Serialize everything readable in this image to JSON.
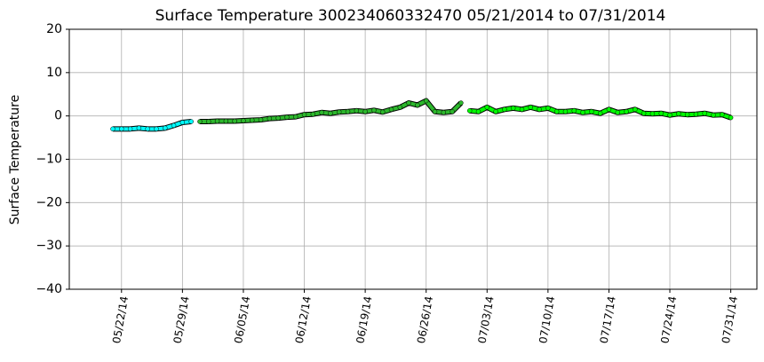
{
  "chart_data": {
    "type": "line",
    "title": "Surface Temperature 300234060332470  05/21/2014 to 07/31/2014",
    "y_label": "Surface Temperature",
    "xlim": [
      "2014-05-16",
      "2014-08-03"
    ],
    "xticks": [
      {
        "value": "2014-05-22",
        "label": "05/22/14"
      },
      {
        "value": "2014-05-29",
        "label": "05/29/14"
      },
      {
        "value": "2014-06-05",
        "label": "06/05/14"
      },
      {
        "value": "2014-06-12",
        "label": "06/12/14"
      },
      {
        "value": "2014-06-19",
        "label": "06/19/14"
      },
      {
        "value": "2014-06-26",
        "label": "06/26/14"
      },
      {
        "value": "2014-07-03",
        "label": "07/03/14"
      },
      {
        "value": "2014-07-10",
        "label": "07/10/14"
      },
      {
        "value": "2014-07-17",
        "label": "07/17/14"
      },
      {
        "value": "2014-07-24",
        "label": "07/24/14"
      },
      {
        "value": "2014-07-31",
        "label": "07/31/14"
      }
    ],
    "ylim": [
      -40,
      20
    ],
    "yticks": [
      {
        "value": -40,
        "label": "−40"
      },
      {
        "value": -30,
        "label": "−30"
      },
      {
        "value": -20,
        "label": "−20"
      },
      {
        "value": -10,
        "label": "−10"
      },
      0,
      10,
      20
    ],
    "grid": true,
    "series": [
      {
        "color": "#00ffff",
        "x": [
          "2014-05-21",
          "2014-05-22",
          "2014-05-23",
          "2014-05-24",
          "2014-05-25",
          "2014-05-26",
          "2014-05-27",
          "2014-05-28",
          "2014-05-29",
          "2014-05-30"
        ],
        "values": [
          -3,
          -3,
          -3,
          -2.8,
          -3,
          -3,
          -2.8,
          -2.2,
          -1.5,
          -1.3
        ]
      },
      {
        "color": "#2db82d",
        "x": [
          "2014-05-31",
          "2014-06-01",
          "2014-06-02",
          "2014-06-03",
          "2014-06-04",
          "2014-06-05",
          "2014-06-06",
          "2014-06-07",
          "2014-06-08",
          "2014-06-09",
          "2014-06-10",
          "2014-06-11",
          "2014-06-12",
          "2014-06-13",
          "2014-06-14",
          "2014-06-15",
          "2014-06-16",
          "2014-06-17",
          "2014-06-18",
          "2014-06-19",
          "2014-06-20",
          "2014-06-21",
          "2014-06-22",
          "2014-06-23",
          "2014-06-24",
          "2014-06-25",
          "2014-06-26",
          "2014-06-27",
          "2014-06-28",
          "2014-06-29",
          "2014-06-30"
        ],
        "values": [
          -1.3,
          -1.3,
          -1.2,
          -1.2,
          -1.2,
          -1.1,
          -1.0,
          -0.9,
          -0.6,
          -0.5,
          -0.3,
          -0.2,
          0.3,
          0.4,
          0.8,
          0.6,
          0.9,
          1.0,
          1.2,
          1.0,
          1.3,
          0.9,
          1.5,
          2.0,
          3.0,
          2.5,
          3.5,
          1.0,
          0.8,
          1.0,
          3.0
        ]
      },
      {
        "color": "#00ff00",
        "x": [
          "2014-07-01",
          "2014-07-02",
          "2014-07-03",
          "2014-07-04",
          "2014-07-05",
          "2014-07-06",
          "2014-07-07",
          "2014-07-08",
          "2014-07-09",
          "2014-07-10",
          "2014-07-11",
          "2014-07-12",
          "2014-07-13",
          "2014-07-14",
          "2014-07-15",
          "2014-07-16",
          "2014-07-17",
          "2014-07-18",
          "2014-07-19",
          "2014-07-20",
          "2014-07-21",
          "2014-07-22",
          "2014-07-23",
          "2014-07-24",
          "2014-07-25",
          "2014-07-26",
          "2014-07-27",
          "2014-07-28",
          "2014-07-29",
          "2014-07-30",
          "2014-07-31"
        ],
        "values": [
          1.2,
          1.0,
          2.0,
          1.0,
          1.5,
          1.8,
          1.5,
          2.0,
          1.5,
          1.8,
          1.0,
          1.0,
          1.2,
          0.8,
          1.0,
          0.6,
          1.5,
          0.8,
          1.0,
          1.5,
          0.6,
          0.5,
          0.6,
          0.2,
          0.5,
          0.3,
          0.4,
          0.6,
          0.2,
          0.3,
          -0.4
        ]
      }
    ]
  }
}
